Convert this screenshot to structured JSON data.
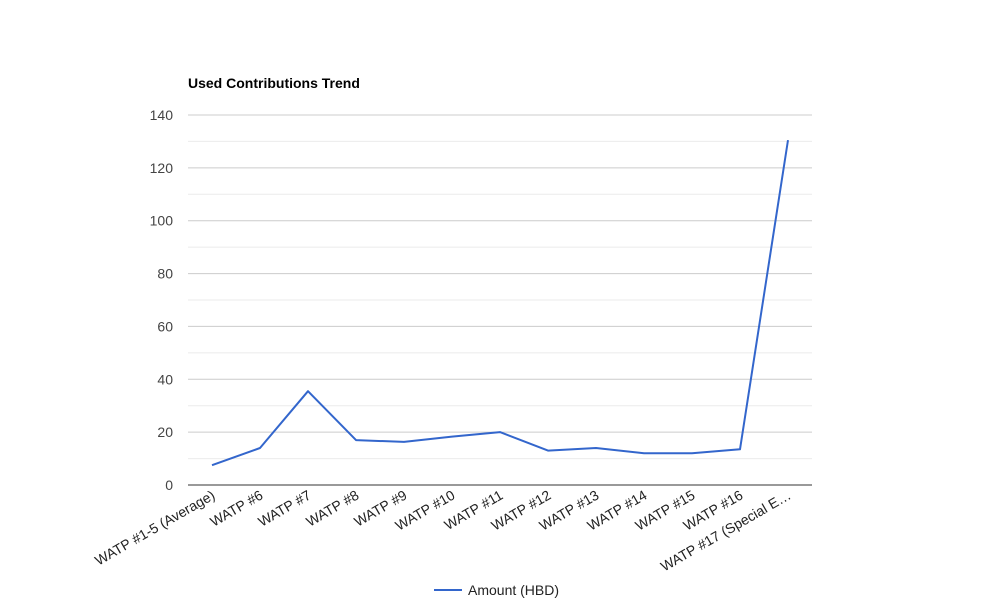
{
  "chart_data": {
    "type": "line",
    "title": "Used Contributions Trend",
    "xlabel": "",
    "ylabel": "",
    "categories": [
      "WATP #1-5 (Average)",
      "WATP #6",
      "WATP #7",
      "WATP #8",
      "WATP #9",
      "WATP #10",
      "WATP #11",
      "WATP #12",
      "WATP #13",
      "WATP #14",
      "WATP #15",
      "WATP #16",
      "WATP #17 (Special E…"
    ],
    "series": [
      {
        "name": "Amount (HBD)",
        "color": "#3366cc",
        "values": [
          7.5,
          14,
          35.5,
          17,
          16.3,
          18.3,
          20,
          13,
          14,
          12,
          12,
          13.5,
          130.5
        ]
      }
    ],
    "ylim": [
      0,
      140
    ],
    "yticks": [
      0,
      20,
      40,
      60,
      80,
      100,
      120,
      140
    ],
    "ytick_labels": [
      "0",
      "20",
      "40",
      "60",
      "80",
      "100",
      "120",
      "140"
    ],
    "grid": true,
    "legend_position": "bottom"
  }
}
